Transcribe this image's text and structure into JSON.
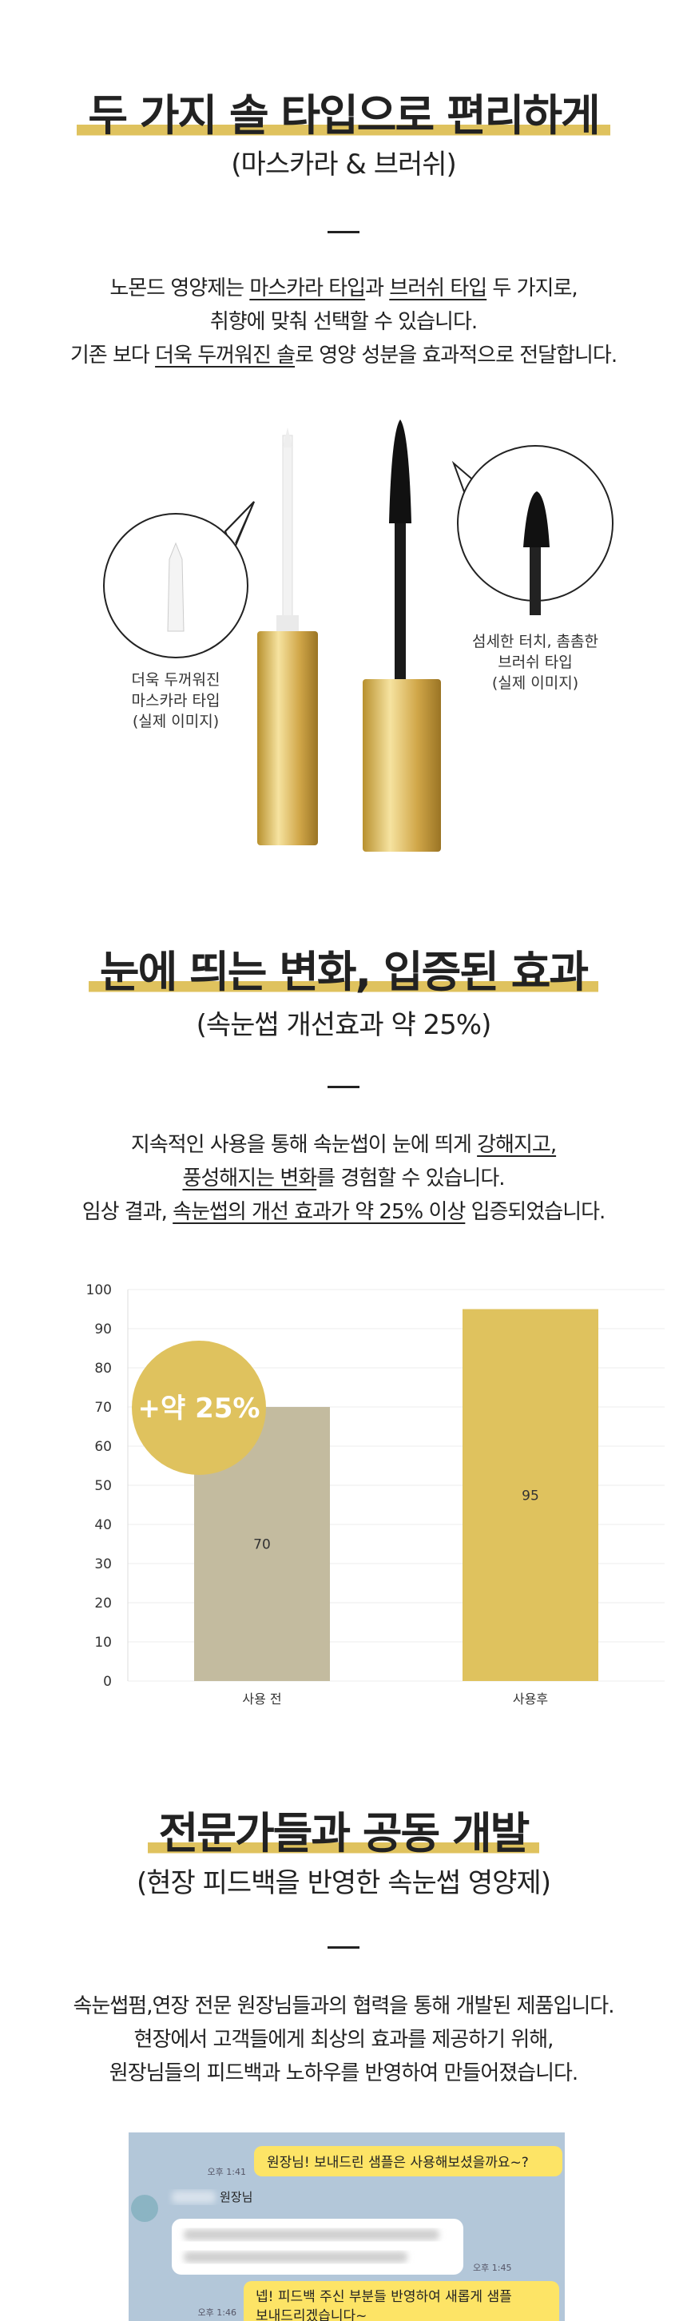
{
  "sections": [
    {
      "title": "두 가지 솔 타입으로 편리하게",
      "subtitle": "(마스카라 & 브러쉬)",
      "lines": [
        [
          {
            "text": "노몬드 영양제는 "
          },
          {
            "text": "마스카라 타입",
            "underline": true
          },
          {
            "text": "과 "
          },
          {
            "text": "브러쉬 타입",
            "underline": true
          },
          {
            "text": " 두 가지로,"
          }
        ],
        [
          {
            "text": "취향에 맞춰 선택할 수 있습니다."
          }
        ],
        [
          {
            "text": "기존 보다 "
          },
          {
            "text": "더욱 두꺼워진 솔",
            "underline": true
          },
          {
            "text": "로 영양 성분을 효과적으로 전달합니다."
          }
        ]
      ],
      "labels": [
        [
          "더욱 두꺼워진",
          "마스카라 타입",
          "(실제 이미지)"
        ],
        [
          "섬세한 터치, 촘촘한",
          "브러쉬 타입",
          "(실제 이미지)"
        ]
      ]
    },
    {
      "title": "눈에 띄는 변화, 입증된 효과",
      "subtitle": "(속눈썹 개선효과 약 25%)",
      "lines": [
        [
          {
            "text": "지속적인 사용을 통해 속눈썹이 눈에 띄게 "
          },
          {
            "text": "강해지고,",
            "underline": true
          }
        ],
        [
          {
            "text": "풍성해지는 변화",
            "underline": true
          },
          {
            "text": "를 경험할 수 있습니다."
          }
        ],
        [
          {
            "text": "임상 결과, "
          },
          {
            "text": "속눈썹의 개선 효과가 약 25% 이상",
            "underline": true
          },
          {
            "text": " 입증되었습니다."
          }
        ]
      ]
    },
    {
      "title": "전문가들과 공동 개발",
      "subtitle": "(현장 피드백을 반영한 속눈썹 영양제)",
      "lines": [
        [
          {
            "text": "속눈썹펌,연장 전문 원장님들과의 협력을 통해 개발된 제품입니다."
          }
        ],
        [
          {
            "text": "현장에서 고객들에게 최상의 효과를 제공하기 위해,"
          }
        ],
        [
          {
            "text": "원장님들의 피드백과 노하우를 반영하여 만들어졌습니다."
          }
        ]
      ]
    }
  ],
  "chart_data": {
    "type": "bar",
    "categories": [
      "사용 전",
      "사용후"
    ],
    "values": [
      70,
      95
    ],
    "colors": [
      "#c3bb9f",
      "#dfc25e"
    ],
    "ylim": [
      0,
      100
    ],
    "yticks": [
      0,
      10,
      20,
      30,
      40,
      50,
      60,
      70,
      80,
      90,
      100
    ],
    "grid": true,
    "annotation": "+약 25%"
  },
  "chat": {
    "messages": [
      {
        "side": "right",
        "text": "원장님! 보내드린 샘플은 사용해보셨을까요~?",
        "time": "오후 1:41"
      },
      {
        "side": "left",
        "name": "원장님",
        "time": "오후 1:45"
      },
      {
        "side": "right",
        "text": "넵! 피드백 주신 부분들 반영하여 새롭게 샘플\n보내드리겠습니다~",
        "time": "오후 1:46"
      }
    ]
  }
}
